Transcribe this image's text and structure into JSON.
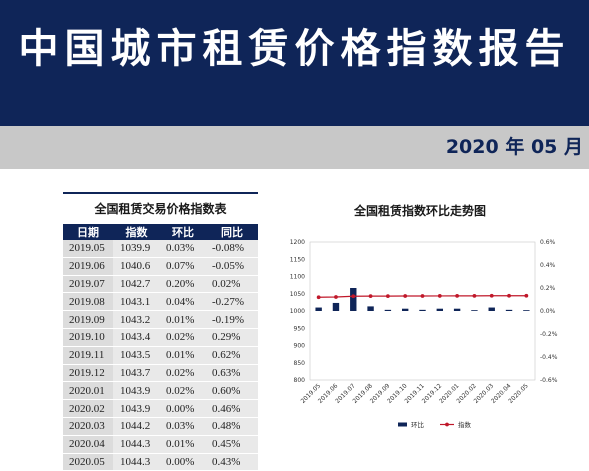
{
  "header": {
    "title": "中国城市租赁价格指数报告",
    "date": "2020 年 05 月"
  },
  "table": {
    "title": "全国租赁交易价格指数表",
    "columns": [
      "日期",
      "指数",
      "环比",
      "同比"
    ],
    "rows": [
      [
        "2019.05",
        "1039.9",
        "0.03%",
        "-0.08%"
      ],
      [
        "2019.06",
        "1040.6",
        "0.07%",
        "-0.05%"
      ],
      [
        "2019.07",
        "1042.7",
        "0.20%",
        "0.02%"
      ],
      [
        "2019.08",
        "1043.1",
        "0.04%",
        "-0.27%"
      ],
      [
        "2019.09",
        "1043.2",
        "0.01%",
        "-0.19%"
      ],
      [
        "2019.10",
        "1043.4",
        "0.02%",
        "0.29%"
      ],
      [
        "2019.11",
        "1043.5",
        "0.01%",
        "0.62%"
      ],
      [
        "2019.12",
        "1043.7",
        "0.02%",
        "0.63%"
      ],
      [
        "2020.01",
        "1043.9",
        "0.02%",
        "0.60%"
      ],
      [
        "2020.02",
        "1043.9",
        "0.00%",
        "0.46%"
      ],
      [
        "2020.03",
        "1044.2",
        "0.03%",
        "0.48%"
      ],
      [
        "2020.04",
        "1044.3",
        "0.01%",
        "0.45%"
      ],
      [
        "2020.05",
        "1044.3",
        "0.00%",
        "0.43%"
      ]
    ]
  },
  "chart_data": {
    "type": "bar",
    "title": "全国租赁指数环比走势图",
    "categories": [
      "2019.05",
      "2019.06",
      "2019.07",
      "2019.08",
      "2019.09",
      "2019.10",
      "2019.11",
      "2019.12",
      "2020.01",
      "2020.02",
      "2020.03",
      "2020.04",
      "2020.05"
    ],
    "series": [
      {
        "name": "环比",
        "type": "bar",
        "axis": "right",
        "color": "#0f2558",
        "values": [
          0.03,
          0.07,
          0.2,
          0.04,
          0.01,
          0.02,
          0.01,
          0.02,
          0.02,
          0.0,
          0.03,
          0.01,
          0.0
        ]
      },
      {
        "name": "指数",
        "type": "line",
        "axis": "left",
        "color": "#c0182a",
        "values": [
          1039.9,
          1040.6,
          1042.7,
          1043.1,
          1043.2,
          1043.4,
          1043.5,
          1043.7,
          1043.9,
          1043.9,
          1044.2,
          1044.3,
          1044.3
        ]
      }
    ],
    "left_axis": {
      "min": 800,
      "max": 1200,
      "ticks": [
        "1200",
        "1150",
        "1100",
        "1050",
        "1000",
        "950",
        "900",
        "850",
        "800"
      ]
    },
    "right_axis": {
      "min": -0.6,
      "max": 0.6,
      "ticks": [
        "0.6%",
        "0.4%",
        "0.2%",
        "0.0%",
        "-0.2%",
        "-0.4%",
        "-0.6%"
      ]
    },
    "legend_position": "bottom",
    "grid": false
  }
}
